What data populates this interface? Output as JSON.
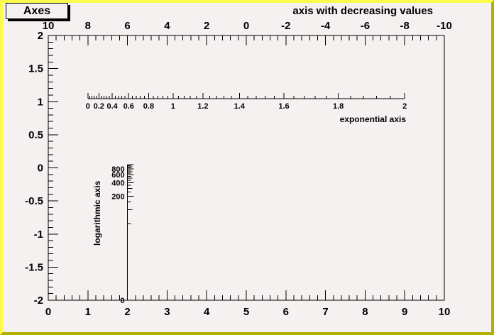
{
  "title_box": {
    "label": "Axes"
  },
  "colors": {
    "background": "#f6f1f1",
    "border_light": "#fbfb4e",
    "border_dark": "#b1b104",
    "line": "#000000"
  },
  "chart_data": {
    "type": "axes-demo",
    "title": "Axes",
    "frame": {
      "xlim": [
        0,
        10
      ],
      "ylim": [
        -2,
        2
      ],
      "x_major_step": 1,
      "x_minor_per_major": 5,
      "y_major_step": 0.5,
      "y_minor_per_major": 5,
      "x_tick_labels": [
        "0",
        "1",
        "2",
        "3",
        "4",
        "5",
        "6",
        "7",
        "8",
        "9",
        "10"
      ],
      "y_tick_labels": [
        "2",
        "1.5",
        "1",
        "0.5",
        "0",
        "-0.5",
        "-1",
        "-1.5",
        "-2"
      ]
    },
    "top_axis": {
      "title": "axis with decreasing values",
      "range": [
        10,
        -10
      ],
      "major_step": 2,
      "minor_per_major": 5,
      "tick_labels": [
        "10",
        "8",
        "6",
        "4",
        "2",
        "0",
        "-2",
        "-4",
        "-6",
        "-8",
        "-10"
      ]
    },
    "exponential_axis": {
      "title": "exponential axis",
      "function": "exp(x)",
      "range": [
        0,
        2
      ],
      "major_step": 0.2,
      "minor_per_major": 5,
      "tick_labels": [
        "0",
        "0.2",
        "0.4",
        "0.6",
        "0.8",
        "1",
        "1.2",
        "1.4",
        "1.6",
        "1.8",
        "2"
      ]
    },
    "logarithmic_axis": {
      "title": "logarithmic axis",
      "scale": "log10",
      "range": [
        1,
        1000
      ],
      "tick_value_step": 50,
      "labeled_values": [
        800,
        600,
        400,
        200
      ],
      "tick_labels": [
        "800",
        "600",
        "400",
        "200"
      ],
      "end_label": "0"
    }
  }
}
